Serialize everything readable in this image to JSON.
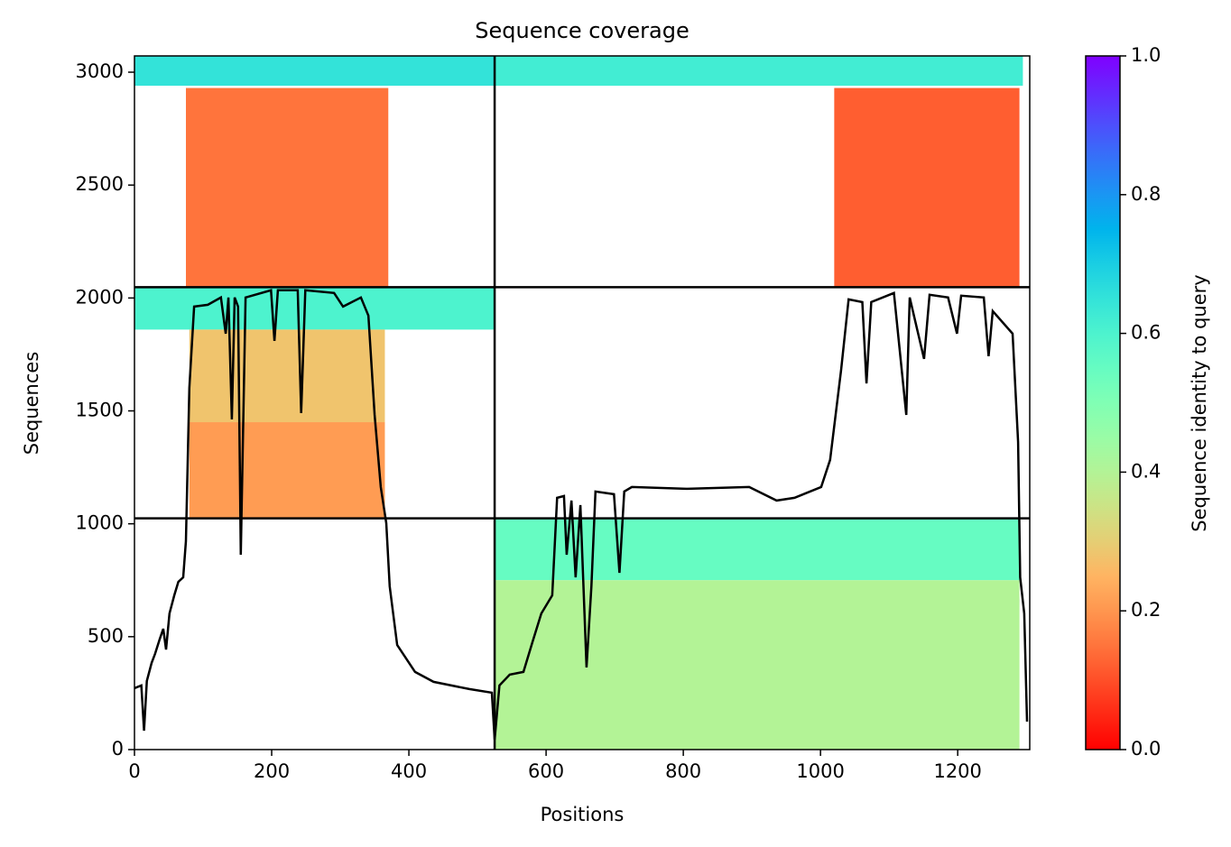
{
  "chart_data": {
    "type": "coverage",
    "title": "Sequence coverage",
    "xlabel": "Positions",
    "ylabel": "Sequences",
    "colorbar_label": "Sequence identity to query",
    "colormap": "rainbow_r",
    "xlim": [
      0,
      1305
    ],
    "ylim": [
      0,
      3072
    ],
    "xticks": [
      0,
      200,
      400,
      600,
      800,
      1000,
      1200
    ],
    "yticks": [
      0,
      500,
      1000,
      1500,
      2000,
      2500,
      3000
    ],
    "clim": [
      0,
      1
    ],
    "cticks": [
      {
        "value": 0,
        "label": "0.0"
      },
      0.2,
      0.4,
      0.6,
      0.8,
      {
        "value": 1,
        "label": "1.0"
      }
    ],
    "dividers": {
      "x": [
        525
      ],
      "y": [
        1024,
        2048
      ]
    },
    "blocks": [
      {
        "x": [
          0,
          525
        ],
        "y": [
          2940,
          3072
        ],
        "identity": 0.65
      },
      {
        "x": [
          75,
          370
        ],
        "y": [
          2048,
          2930
        ],
        "identity": 0.15
      },
      {
        "x": [
          525,
          1295
        ],
        "y": [
          2940,
          3072
        ],
        "identity": 0.62
      },
      {
        "x": [
          1020,
          1290
        ],
        "y": [
          2048,
          2930
        ],
        "identity": 0.12
      },
      {
        "x": [
          0,
          525
        ],
        "y": [
          1860,
          2048
        ],
        "identity": 0.6
      },
      {
        "x": [
          80,
          365
        ],
        "y": [
          1450,
          1860
        ],
        "identity": 0.28
      },
      {
        "x": [
          80,
          365
        ],
        "y": [
          1024,
          1450
        ],
        "identity": 0.21
      },
      {
        "x": [
          525,
          1290
        ],
        "y": [
          750,
          1024
        ],
        "identity": 0.55
      },
      {
        "x": [
          525,
          1290
        ],
        "y": [
          0,
          750
        ],
        "identity": 0.4
      }
    ],
    "line": {
      "color": "#000000",
      "x": [
        0,
        10,
        14,
        18,
        25,
        30,
        37,
        42,
        46,
        51,
        58,
        64,
        71,
        75,
        80,
        87,
        107,
        126,
        133,
        137,
        142,
        146,
        151,
        155,
        162,
        199,
        204,
        209,
        238,
        243,
        249,
        291,
        304,
        330,
        341,
        350,
        359,
        367,
        372,
        383,
        409,
        436,
        488,
        521,
        525,
        532,
        547,
        567,
        580,
        593,
        609,
        616,
        626,
        630,
        637,
        643,
        650,
        659,
        666,
        672,
        699,
        707,
        714,
        725,
        804,
        896,
        936,
        962,
        1001,
        1014,
        1030,
        1041,
        1061,
        1067,
        1074,
        1107,
        1125,
        1130,
        1151,
        1159,
        1186,
        1199,
        1205,
        1238,
        1245,
        1251,
        1280,
        1288,
        1291,
        1297,
        1301
      ],
      "y": [
        272,
        284,
        84,
        304,
        384,
        424,
        491,
        535,
        443,
        603,
        683,
        743,
        763,
        923,
        1602,
        1962,
        1970,
        2002,
        1842,
        2002,
        1462,
        2002,
        1962,
        863,
        2002,
        2034,
        1810,
        2034,
        2034,
        1490,
        2034,
        2022,
        1962,
        2002,
        1922,
        1482,
        1163,
        1003,
        723,
        463,
        344,
        300,
        268,
        252,
        44,
        284,
        332,
        344,
        475,
        603,
        683,
        1115,
        1123,
        863,
        1103,
        763,
        1083,
        364,
        723,
        1143,
        1131,
        783,
        1143,
        1163,
        1155,
        1163,
        1103,
        1115,
        1163,
        1283,
        1682,
        1994,
        1982,
        1622,
        1982,
        2022,
        1482,
        2002,
        1730,
        2014,
        2002,
        1842,
        2010,
        2002,
        1742,
        1942,
        1842,
        1362,
        763,
        603,
        124
      ]
    }
  }
}
